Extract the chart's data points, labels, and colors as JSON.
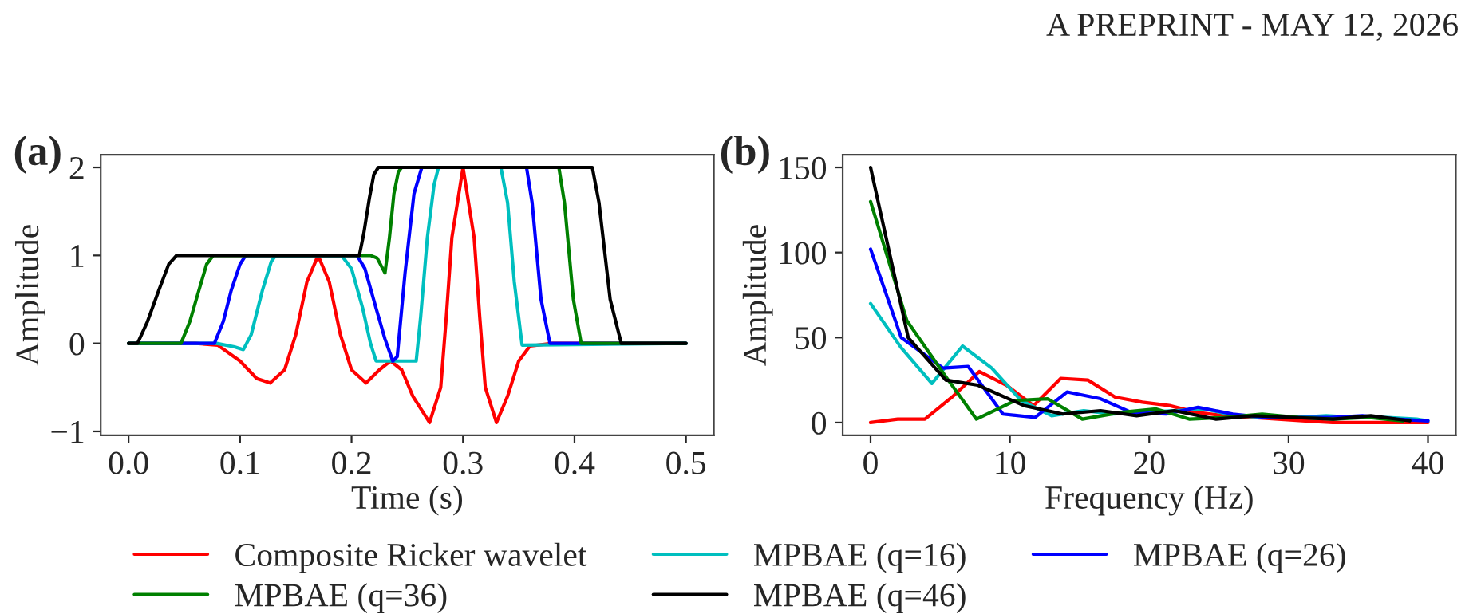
{
  "chart_data": [
    {
      "type": "line",
      "title": "(a)",
      "xlabel": "Time (s)",
      "ylabel": "Amplitude",
      "legend": "bottom",
      "annotations": [
        "A PREPRINT - MAY 12, 2026"
      ],
      "xlim": [
        -0.025,
        0.525
      ],
      "ylim": [
        -1.045,
        2.145
      ],
      "xticks": [
        {
          "value": 0,
          "label": "0.0"
        },
        {
          "value": 0.1,
          "label": "0.1"
        },
        {
          "value": 0.2,
          "label": "0.2"
        },
        {
          "value": 0.3,
          "label": "0.3"
        },
        {
          "value": 0.4,
          "label": "0.4"
        },
        {
          "value": 0.5,
          "label": "0.5"
        }
      ],
      "yticks": [
        {
          "value": -1,
          "label": "−1"
        },
        0,
        1,
        2
      ],
      "series": [
        {
          "name": "Composite Ricker wavelet",
          "color": "#ff0000",
          "x": [
            0,
            0.06,
            0.08,
            0.1,
            0.115,
            0.127,
            0.14,
            0.15,
            0.16,
            0.17,
            0.18,
            0.19,
            0.2,
            0.213,
            0.225,
            0.235,
            0.245,
            0.255,
            0.27,
            0.28,
            0.285,
            0.29,
            0.3,
            0.31,
            0.315,
            0.32,
            0.33,
            0.34,
            0.35,
            0.36,
            0.38,
            0.5
          ],
          "values": [
            0,
            0,
            -0.02,
            -0.2,
            -0.4,
            -0.45,
            -0.3,
            0.1,
            0.7,
            1.0,
            0.7,
            0.1,
            -0.3,
            -0.45,
            -0.3,
            -0.2,
            -0.3,
            -0.6,
            -0.9,
            -0.5,
            0.3,
            1.2,
            2.0,
            1.2,
            0.3,
            -0.5,
            -0.9,
            -0.6,
            -0.2,
            -0.03,
            0,
            0
          ]
        },
        {
          "name": "MPBAE (q=16)",
          "color": "#00bfbf",
          "x": [
            0,
            0.079,
            0.095,
            0.103,
            0.11,
            0.12,
            0.128,
            0.132,
            0.191,
            0.2,
            0.21,
            0.217,
            0.222,
            0.258,
            0.262,
            0.268,
            0.274,
            0.278,
            0.334,
            0.34,
            0.346,
            0.353,
            0.5
          ],
          "values": [
            0,
            0,
            -0.04,
            -0.07,
            0.1,
            0.6,
            0.93,
            1,
            1,
            0.85,
            0.4,
            0,
            -0.2,
            -0.2,
            0.3,
            1.2,
            1.8,
            2,
            2,
            1.6,
            0.7,
            -0.02,
            0
          ]
        },
        {
          "name": "MPBAE (q=26)",
          "color": "#0000ff",
          "x": [
            0,
            0.077,
            0.085,
            0.092,
            0.1,
            0.105,
            0.205,
            0.212,
            0.222,
            0.23,
            0.237,
            0.241,
            0.248,
            0.256,
            0.263,
            0.357,
            0.362,
            0.37,
            0.378,
            0.5
          ],
          "values": [
            0,
            0,
            0.25,
            0.6,
            0.9,
            1,
            1,
            0.85,
            0.4,
            0.05,
            -0.2,
            -0.15,
            0.8,
            1.7,
            2,
            2,
            1.6,
            0.5,
            0,
            0
          ]
        },
        {
          "name": "MPBAE (q=36)",
          "color": "#008000",
          "x": [
            0,
            0.047,
            0.055,
            0.063,
            0.07,
            0.076,
            0.217,
            0.223,
            0.23,
            0.234,
            0.238,
            0.242,
            0.245,
            0.386,
            0.391,
            0.399,
            0.406,
            0.5
          ],
          "values": [
            0,
            0,
            0.25,
            0.6,
            0.9,
            1,
            1,
            0.97,
            0.8,
            1.2,
            1.7,
            1.95,
            2,
            2,
            1.6,
            0.5,
            0,
            0
          ]
        },
        {
          "name": "MPBAE (q=46)",
          "color": "#000000",
          "x": [
            0,
            0.008,
            0.017,
            0.027,
            0.036,
            0.043,
            0.207,
            0.211,
            0.216,
            0.22,
            0.224,
            0.416,
            0.422,
            0.432,
            0.442,
            0.5
          ],
          "values": [
            0,
            0,
            0.25,
            0.6,
            0.9,
            1,
            1,
            1.25,
            1.65,
            1.92,
            2,
            2,
            1.6,
            0.5,
            0,
            0
          ]
        }
      ]
    },
    {
      "type": "line",
      "title": "(b)",
      "xlabel": "Frequency (Hz)",
      "ylabel": "Amplitude",
      "xlim": [
        -2,
        42
      ],
      "ylim": [
        -7.5,
        157.5
      ],
      "xticks": [
        0,
        10,
        20,
        30,
        40
      ],
      "yticks": [
        0,
        50,
        100,
        150
      ],
      "series": [
        {
          "color": "#ff0000",
          "x": [
            0,
            1.95,
            3.9,
            5.85,
            7.8,
            9.75,
            11.7,
            13.65,
            15.6,
            17.55,
            19.5,
            21.45,
            23.4,
            25.35,
            27.3,
            29.25,
            31.2,
            33.15,
            35.1,
            37.05,
            39.0,
            40
          ],
          "values": [
            0,
            2,
            2,
            15,
            30,
            22,
            10,
            26,
            25,
            15,
            12,
            10,
            6,
            4,
            3,
            2,
            1,
            0,
            0,
            0,
            0,
            0
          ]
        },
        {
          "color": "#00bfbf",
          "x": [
            0,
            2.2,
            4.4,
            6.6,
            8.7,
            10.8,
            13,
            15.3,
            17.4,
            19.6,
            21.8,
            24,
            26.2,
            28.3,
            30.5,
            32.7,
            34.9,
            37.1,
            39.2,
            40
          ],
          "values": [
            70,
            44,
            23,
            45,
            32,
            13,
            4,
            7,
            5,
            6,
            7,
            8,
            4,
            3,
            3,
            4,
            3,
            3,
            2,
            1
          ]
        },
        {
          "color": "#0000ff",
          "x": [
            0,
            2.2,
            5.2,
            7,
            9.5,
            11.8,
            14.1,
            16.5,
            18.7,
            21.2,
            23.5,
            26,
            28.3,
            30.6,
            33,
            35.3,
            37.7,
            40
          ],
          "values": [
            102,
            50,
            32,
            33,
            5,
            3,
            18,
            14,
            6,
            5,
            9,
            5,
            3,
            3,
            3,
            4,
            2,
            1
          ]
        },
        {
          "color": "#008000",
          "x": [
            0,
            2.6,
            5.4,
            7.6,
            10.4,
            12.7,
            15.2,
            18,
            20.5,
            22.9,
            25.4,
            28.1,
            30.7,
            33.2,
            35.7,
            38.2
          ],
          "values": [
            130,
            60,
            27,
            2,
            13,
            14,
            2,
            6,
            8,
            2,
            3,
            5,
            3,
            2,
            3,
            1
          ]
        },
        {
          "color": "#000000",
          "x": [
            0,
            2.7,
            5.4,
            7.7,
            11,
            13.8,
            16.5,
            19.1,
            21.8,
            24.8,
            27.5,
            30.3,
            33.2,
            35.9,
            38.7
          ],
          "values": [
            150,
            50,
            25,
            22,
            10,
            5,
            7,
            4,
            7,
            2,
            4,
            3,
            2,
            4,
            1
          ]
        }
      ]
    }
  ]
}
